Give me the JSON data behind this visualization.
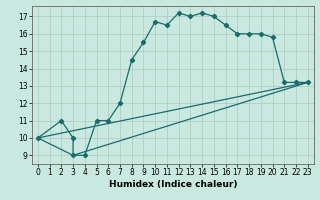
{
  "xlabel": "Humidex (Indice chaleur)",
  "xlim": [
    -0.5,
    23.5
  ],
  "ylim": [
    8.5,
    17.6
  ],
  "xticks": [
    0,
    1,
    2,
    3,
    4,
    5,
    6,
    7,
    8,
    9,
    10,
    11,
    12,
    13,
    14,
    15,
    16,
    17,
    18,
    19,
    20,
    21,
    22,
    23
  ],
  "yticks": [
    9,
    10,
    11,
    12,
    13,
    14,
    15,
    16,
    17
  ],
  "background_color": "#c8e8e0",
  "line_color": "#1a6b6b",
  "curve1_x": [
    0,
    2,
    3,
    3,
    4,
    5,
    6,
    7,
    8,
    9,
    10,
    11,
    12,
    13,
    14,
    15,
    16,
    17,
    18,
    19,
    20,
    21,
    22,
    23
  ],
  "curve1_y": [
    10,
    11,
    10,
    9,
    9,
    11,
    11,
    12,
    14.5,
    15.5,
    16.7,
    16.5,
    17.2,
    17.0,
    17.2,
    17.0,
    16.5,
    16.0,
    16.0,
    16.0,
    15.8,
    13.2,
    13.2,
    13.2
  ],
  "curve2_x": [
    0,
    3,
    23
  ],
  "curve2_y": [
    10,
    9,
    13.2
  ],
  "curve3_x": [
    0,
    23
  ],
  "curve3_y": [
    10,
    13.2
  ],
  "tick_fontsize": 5.5,
  "xlabel_fontsize": 6.5
}
